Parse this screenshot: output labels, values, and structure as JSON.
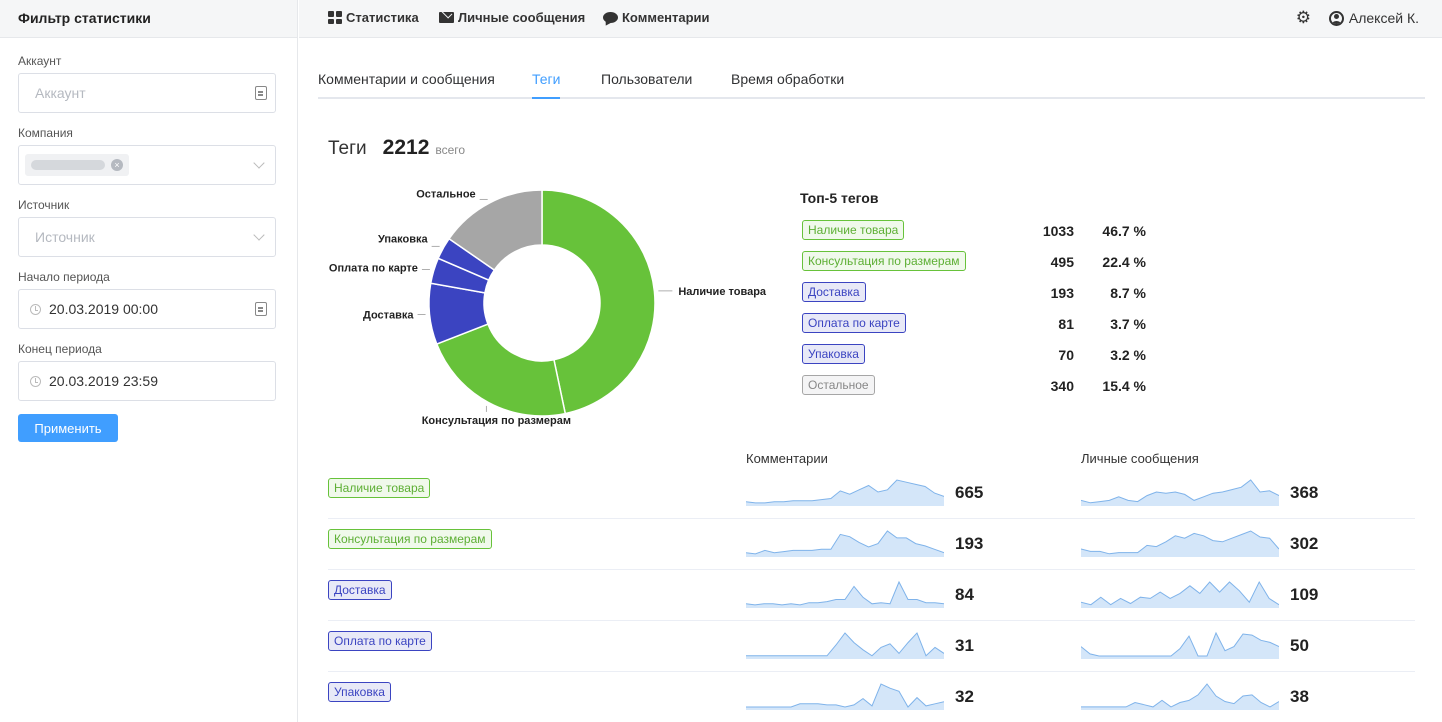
{
  "sidebar": {
    "title": "Фильтр статистики",
    "account": {
      "label": "Аккаунт",
      "placeholder": "Аккаунт"
    },
    "company": {
      "label": "Компания"
    },
    "source": {
      "label": "Источник",
      "placeholder": "Источник"
    },
    "period_start": {
      "label": "Начало периода",
      "value": "20.03.2019 00:00"
    },
    "period_end": {
      "label": "Конец периода",
      "value": "20.03.2019 23:59"
    },
    "apply_label": "Применить"
  },
  "topnav": {
    "items": [
      {
        "label": "Статистика",
        "icon": "grid-icon"
      },
      {
        "label": "Личные сообщения",
        "icon": "envelope-icon"
      },
      {
        "label": "Комментарии",
        "icon": "comment-icon"
      }
    ],
    "user": "Алексей К."
  },
  "tabs": [
    {
      "label": "Комментарии и сообщения",
      "active": false
    },
    {
      "label": "Теги",
      "active": true
    },
    {
      "label": "Пользователи",
      "active": false
    },
    {
      "label": "Время обработки",
      "active": false
    }
  ],
  "summary": {
    "title": "Теги",
    "total": "2212",
    "suffix": "всего"
  },
  "chart_data": {
    "type": "pie",
    "donut": true,
    "slices": [
      {
        "label": "Наличие товара",
        "value": 1033,
        "color": "#67c23a"
      },
      {
        "label": "Консультация по размерам",
        "value": 495,
        "color": "#67c23a"
      },
      {
        "label": "Доставка",
        "value": 193,
        "color": "#3b44c1"
      },
      {
        "label": "Оплата по карте",
        "value": 81,
        "color": "#3b44c1"
      },
      {
        "label": "Упаковка",
        "value": 70,
        "color": "#3b44c1"
      },
      {
        "label": "Остальное",
        "value": 340,
        "color": "#a6a6a6"
      }
    ]
  },
  "top5": {
    "title": "Топ-5 тегов",
    "rows": [
      {
        "label": "Наличие товара",
        "count": "1033",
        "percent": "46.7 %",
        "color": "green"
      },
      {
        "label": "Консультация по размерам",
        "count": "495",
        "percent": "22.4 %",
        "color": "green"
      },
      {
        "label": "Доставка",
        "count": "193",
        "percent": "8.7 %",
        "color": "blue"
      },
      {
        "label": "Оплата по карте",
        "count": "81",
        "percent": "3.7 %",
        "color": "blue"
      },
      {
        "label": "Упаковка",
        "count": "70",
        "percent": "3.2 %",
        "color": "blue"
      },
      {
        "label": "Остальное",
        "count": "340",
        "percent": "15.4 %",
        "color": "gray"
      }
    ]
  },
  "breakdown": {
    "col_comments": "Комментарии",
    "col_messages": "Личные сообщения",
    "rows": [
      {
        "label": "Наличие товара",
        "color": "green",
        "comments": "665",
        "messages": "368",
        "spark_c": [
          2,
          1,
          1,
          2,
          2,
          3,
          3,
          3,
          4,
          5,
          12,
          9,
          13,
          17,
          11,
          13,
          22,
          20,
          18,
          16,
          10,
          7
        ],
        "spark_m": [
          3,
          1,
          2,
          3,
          6,
          3,
          2,
          7,
          10,
          9,
          10,
          8,
          3,
          6,
          9,
          10,
          12,
          14,
          20,
          10,
          11,
          7
        ]
      },
      {
        "label": "Консультация по размерам",
        "color": "green",
        "comments": "193",
        "messages": "302",
        "spark_c": [
          2,
          1,
          4,
          2,
          3,
          4,
          4,
          4,
          5,
          5,
          18,
          16,
          11,
          7,
          10,
          21,
          15,
          15,
          10,
          8,
          5,
          2
        ],
        "spark_m": [
          5,
          3,
          3,
          1,
          2,
          2,
          2,
          8,
          7,
          11,
          16,
          14,
          18,
          16,
          12,
          11,
          14,
          17,
          20,
          15,
          14,
          5
        ]
      },
      {
        "label": "Доставка",
        "color": "blue",
        "comments": "84",
        "messages": "109",
        "spark_c": [
          2,
          1,
          2,
          2,
          1,
          2,
          1,
          3,
          3,
          4,
          6,
          6,
          18,
          8,
          2,
          3,
          2,
          22,
          6,
          6,
          3,
          3,
          2
        ],
        "spark_m": [
          3,
          1,
          7,
          1,
          6,
          2,
          7,
          6,
          11,
          6,
          10,
          16,
          10,
          19,
          11,
          19,
          12,
          3,
          19,
          6,
          1
        ]
      },
      {
        "label": "Оплата по карте",
        "color": "blue",
        "comments": "31",
        "messages": "50",
        "spark_c": [
          1,
          1,
          1,
          1,
          1,
          1,
          1,
          1,
          1,
          1,
          10,
          20,
          12,
          6,
          1,
          8,
          11,
          3,
          12,
          20,
          1,
          8,
          3
        ],
        "spark_m": [
          10,
          3,
          1,
          1,
          1,
          1,
          1,
          1,
          1,
          1,
          1,
          8,
          20,
          1,
          1,
          23,
          6,
          10,
          22,
          21,
          16,
          14,
          10
        ]
      },
      {
        "label": "Упаковка",
        "color": "blue",
        "comments": "32",
        "messages": "38",
        "spark_c": [
          1,
          1,
          1,
          1,
          1,
          1,
          4,
          4,
          4,
          3,
          3,
          1,
          3,
          9,
          2,
          23,
          19,
          16,
          1,
          10,
          2,
          4,
          6
        ],
        "spark_m": [
          1,
          1,
          1,
          1,
          1,
          1,
          5,
          3,
          1,
          7,
          1,
          5,
          7,
          12,
          22,
          11,
          6,
          4,
          11,
          12,
          5,
          1,
          6
        ]
      }
    ]
  }
}
